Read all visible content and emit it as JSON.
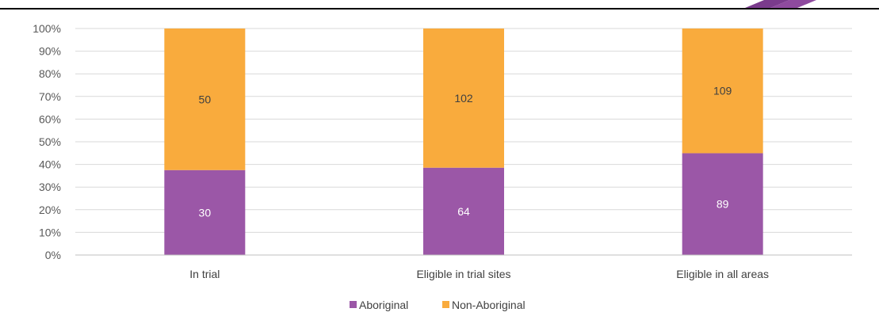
{
  "chart_data": {
    "type": "bar",
    "stacked": true,
    "normalized": true,
    "title": "",
    "xlabel": "",
    "ylabel": "",
    "ylim": [
      0,
      100
    ],
    "yticks": [
      "0%",
      "10%",
      "20%",
      "30%",
      "40%",
      "50%",
      "60%",
      "70%",
      "80%",
      "90%",
      "100%"
    ],
    "grid": true,
    "legend_position": "bottom",
    "categories": [
      "In trial",
      "Eligible in trial sites",
      "Eligible in all areas"
    ],
    "series": [
      {
        "name": "Aboriginal",
        "color": "#9b57a7",
        "label_color": "#ffffff",
        "values": [
          30,
          64,
          89
        ]
      },
      {
        "name": "Non-Aboriginal",
        "color": "#f9ab3d",
        "label_color": "#404040",
        "values": [
          50,
          102,
          109
        ]
      }
    ]
  },
  "decoration": {
    "corner_logo": {
      "icon": "purple-chevron-logo-icon",
      "color": "#7a3b8c"
    }
  }
}
